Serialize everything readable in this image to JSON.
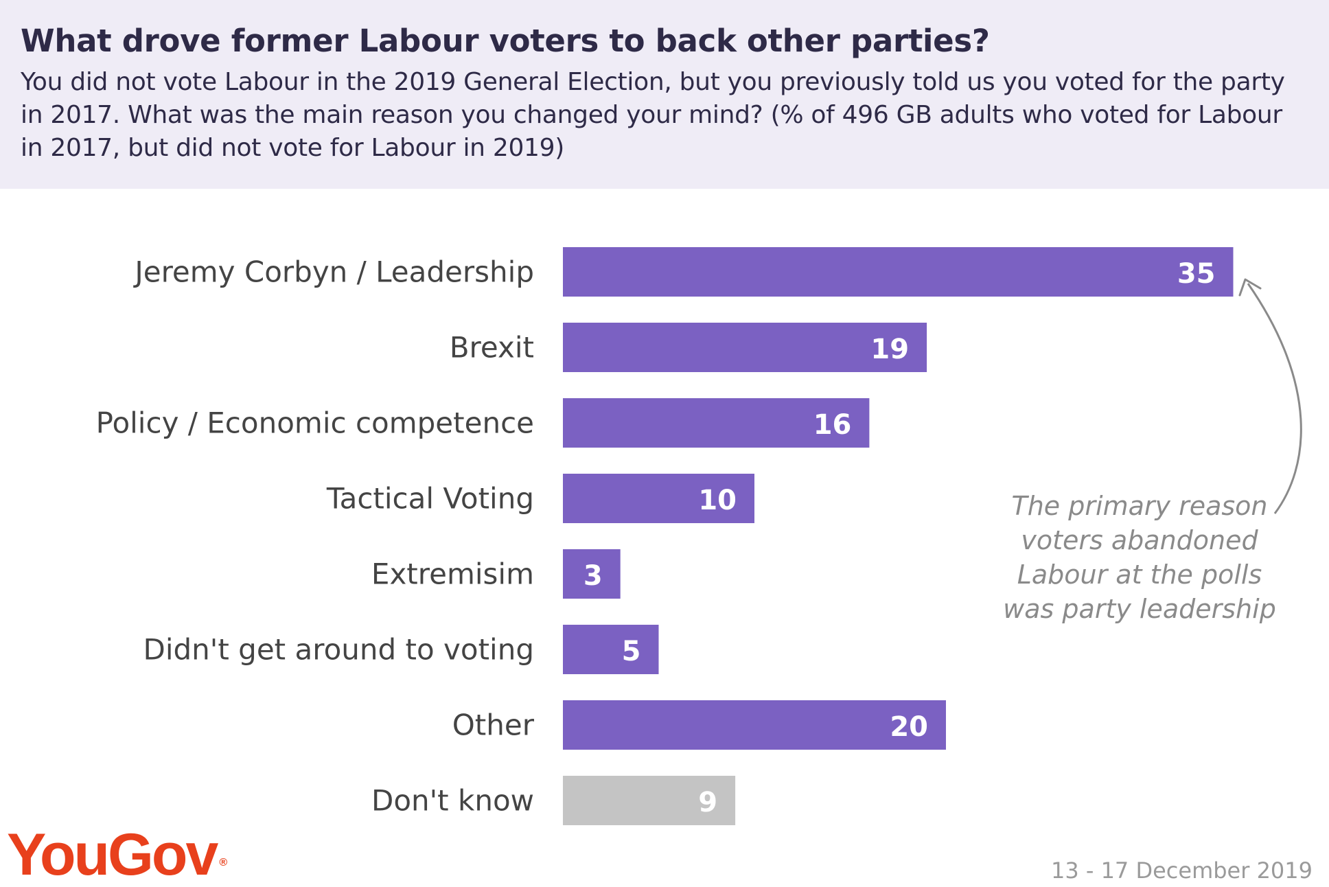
{
  "header": {
    "title": "What drove former Labour voters to back other parties?",
    "subtitle": "You did not vote Labour in the 2019 General Election, but you previously told us you voted for the party in 2017. What was the main reason you changed your mind? (% of 496 GB adults who voted for Labour in 2017, but did not vote for Labour in 2019)"
  },
  "chart_data": {
    "type": "bar",
    "orientation": "horizontal",
    "title": "What drove former Labour voters to back other parties?",
    "xlabel": "",
    "ylabel": "",
    "xlim": [
      0,
      35
    ],
    "grid": false,
    "legend": "none",
    "categories": [
      "Jeremy Corbyn / Leadership",
      "Brexit",
      "Policy / Economic competence",
      "Tactical Voting",
      "Extremisim",
      "Didn't get around to voting",
      "Other",
      "Don't know"
    ],
    "values": [
      35,
      19,
      16,
      10,
      3,
      5,
      20,
      9
    ],
    "bar_colors": [
      "#7b61c2",
      "#7b61c2",
      "#7b61c2",
      "#7b61c2",
      "#7b61c2",
      "#7b61c2",
      "#7b61c2",
      "#c4c4c4"
    ],
    "annotations": [
      {
        "text": "The primary reason voters abandoned Labour at the polls was party leadership",
        "target_category": "Jeremy Corbyn / Leadership"
      }
    ]
  },
  "annotation": {
    "text": "The primary reason voters abandoned Labour at the polls was party leadership"
  },
  "footer": {
    "logo": "YouGov",
    "logo_mark": "®",
    "date": "13 - 17 December 2019"
  },
  "colors": {
    "header_bg": "#efecf6",
    "title": "#2e2a47",
    "bar": "#7b61c2",
    "bar_dont_know": "#c4c4c4",
    "logo": "#e8401c",
    "annotation": "#8a8a8a"
  }
}
